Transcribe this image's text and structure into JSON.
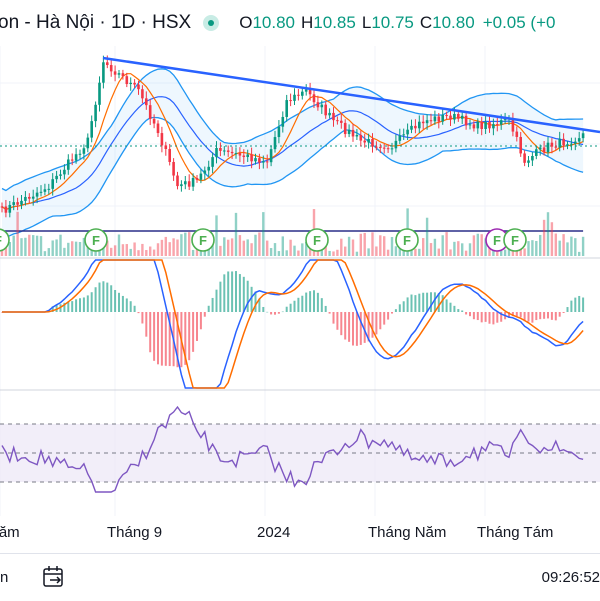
{
  "header": {
    "symbol_title": "on - Hà Nội · 1D · HSX",
    "ohlc": [
      {
        "key": "O",
        "value": "10.80"
      },
      {
        "key": "H",
        "value": "10.85"
      },
      {
        "key": "L",
        "value": "10.75"
      },
      {
        "key": "C",
        "value": "10.80"
      }
    ],
    "change": "+0.05 (+0"
  },
  "time_axis": {
    "ticks": [
      "Năm",
      "Tháng 9",
      "2024",
      "Tháng Năm",
      "Tháng Tám"
    ]
  },
  "markers": {
    "label": "F",
    "count": 7
  },
  "toolbar": {
    "left_text": "n",
    "goto_date_icon": "calendar-arrow-icon",
    "clock": "09:26:52"
  },
  "colors": {
    "up": "#089981",
    "down": "#f23645",
    "trendline": "#2962ff",
    "bollinger": "#2196f3",
    "ma_long": "#2a2e89",
    "macd_line": "#2962ff",
    "signal_line": "#ff6d00",
    "rsi_line": "#7e57c2",
    "rsi_band": "#ede7f6",
    "marker": "#4caf50"
  }
}
